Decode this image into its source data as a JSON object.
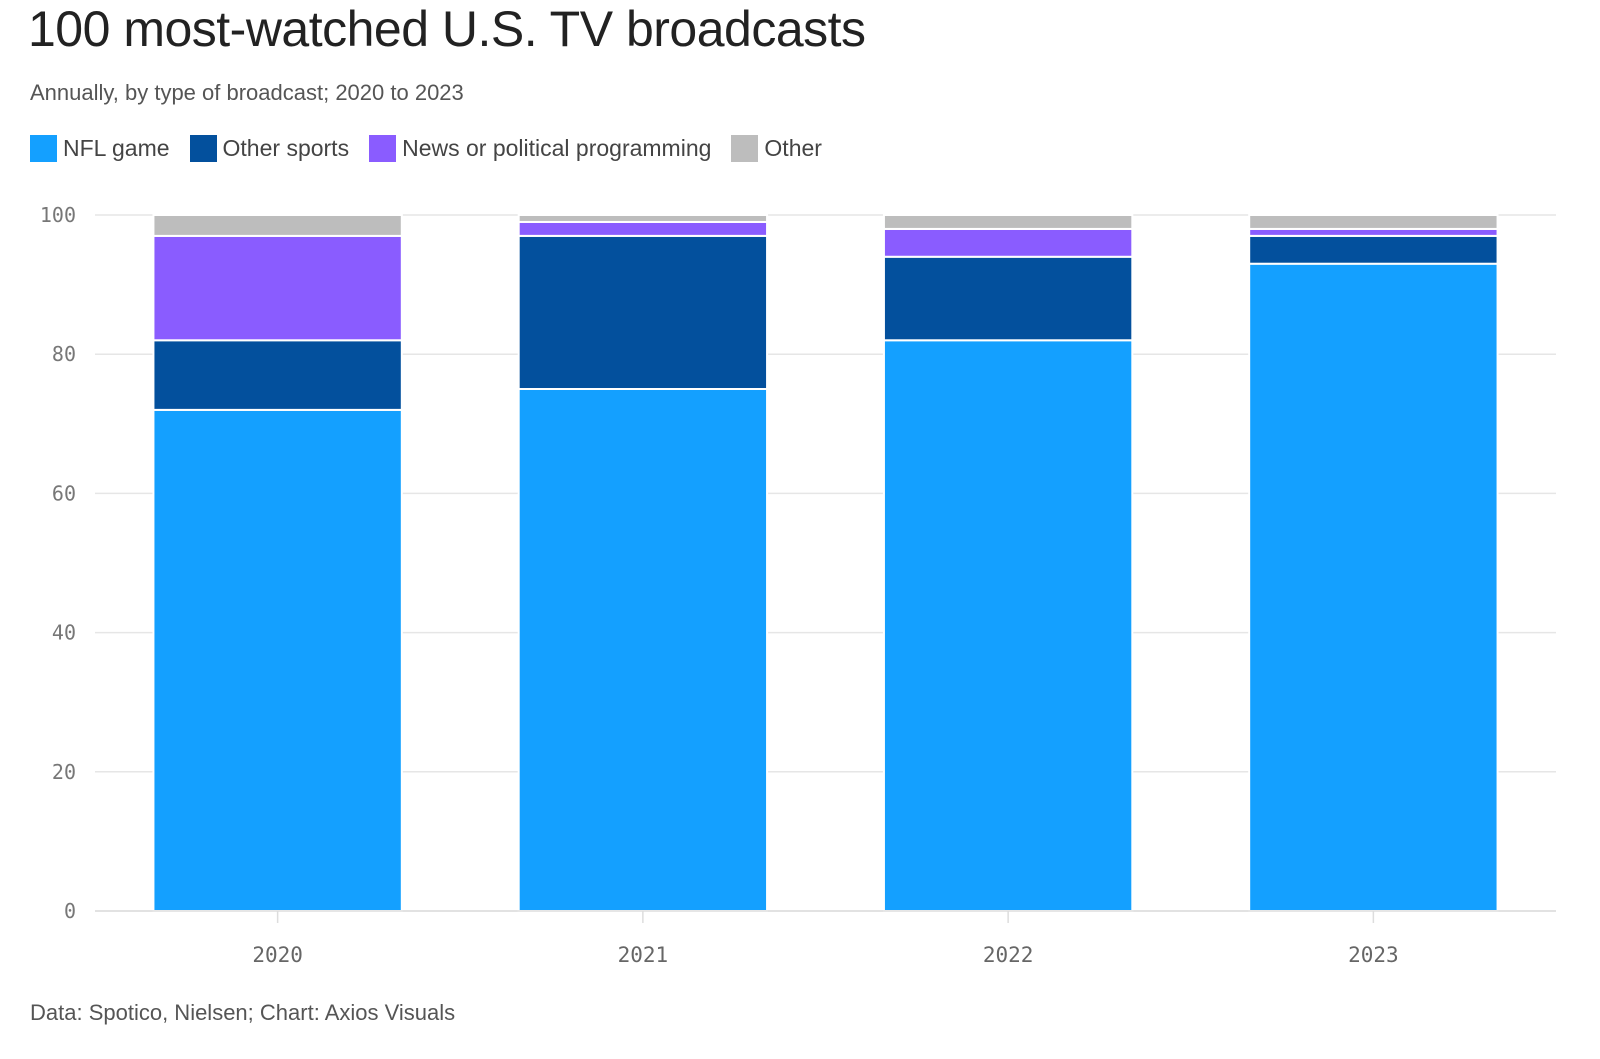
{
  "title": "100 most-watched U.S. TV broadcasts",
  "subtitle": "Annually, by type of broadcast; 2020 to 2023",
  "source": "Data: Spotico, Nielsen; Chart: Axios Visuals",
  "chart_data": {
    "type": "bar",
    "stacked": true,
    "categories": [
      "2020",
      "2021",
      "2022",
      "2023"
    ],
    "series": [
      {
        "name": "NFL game",
        "color": "#14a0ff",
        "values": [
          72,
          75,
          82,
          93
        ]
      },
      {
        "name": "Other sports",
        "color": "#03509d",
        "values": [
          10,
          22,
          12,
          4
        ]
      },
      {
        "name": "News or political programming",
        "color": "#8a5cff",
        "values": [
          15,
          2,
          4,
          1
        ]
      },
      {
        "name": "Other",
        "color": "#bdbdbd",
        "values": [
          3,
          1,
          2,
          2
        ]
      }
    ],
    "ylim": [
      0,
      100
    ],
    "yticks": [
      "0",
      "20",
      "40",
      "60",
      "80",
      "100"
    ],
    "grid": true,
    "legend": "top-left"
  }
}
